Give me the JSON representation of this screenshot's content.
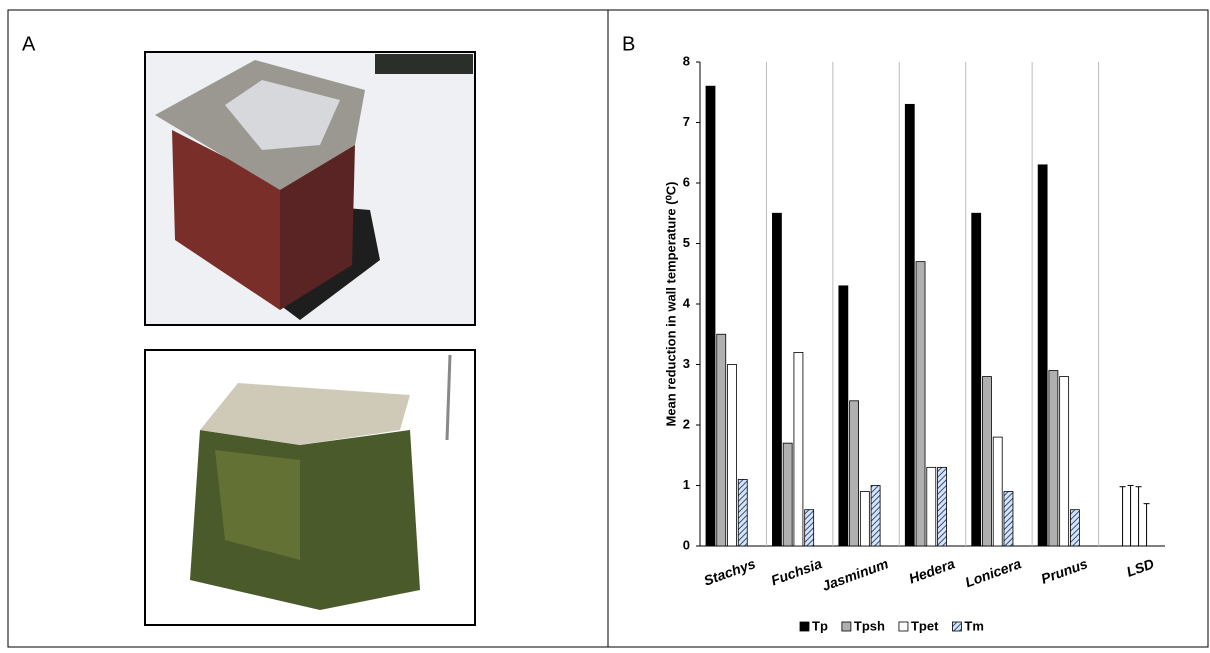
{
  "panel_labels": [
    "A",
    "B"
  ],
  "chart_data": {
    "type": "bar",
    "y_label": "Mean reduction in wall temperature (⁰C)",
    "categories": [
      "Stachys",
      "Fuchsia",
      "Jasminum",
      "Hedera",
      "Lonicera",
      "Prunus",
      "LSD"
    ],
    "series": [
      {
        "name": "Tp",
        "color": "#000000",
        "values": [
          7.6,
          5.5,
          4.3,
          7.3,
          5.5,
          6.3,
          null
        ],
        "lsd": 0.98
      },
      {
        "name": "Tpsh",
        "color": "#b0b0b0",
        "values": [
          3.5,
          1.7,
          2.4,
          4.7,
          2.8,
          2.9,
          null
        ],
        "lsd": 1.0
      },
      {
        "name": "Tpet",
        "color": "#ffffff",
        "values": [
          3.0,
          3.2,
          0.9,
          1.3,
          1.8,
          2.8,
          null
        ],
        "lsd": 0.98
      },
      {
        "name": "Tm",
        "color": "#2f4f8f",
        "hatch": true,
        "values": [
          1.1,
          0.6,
          1.0,
          1.3,
          0.9,
          0.6,
          null
        ],
        "lsd": 0.7
      }
    ],
    "ylim": [
      0,
      8
    ],
    "yticks": [
      0,
      1,
      2,
      3,
      4,
      5,
      6,
      7,
      8
    ],
    "grid": "x",
    "legend": "bottom"
  }
}
